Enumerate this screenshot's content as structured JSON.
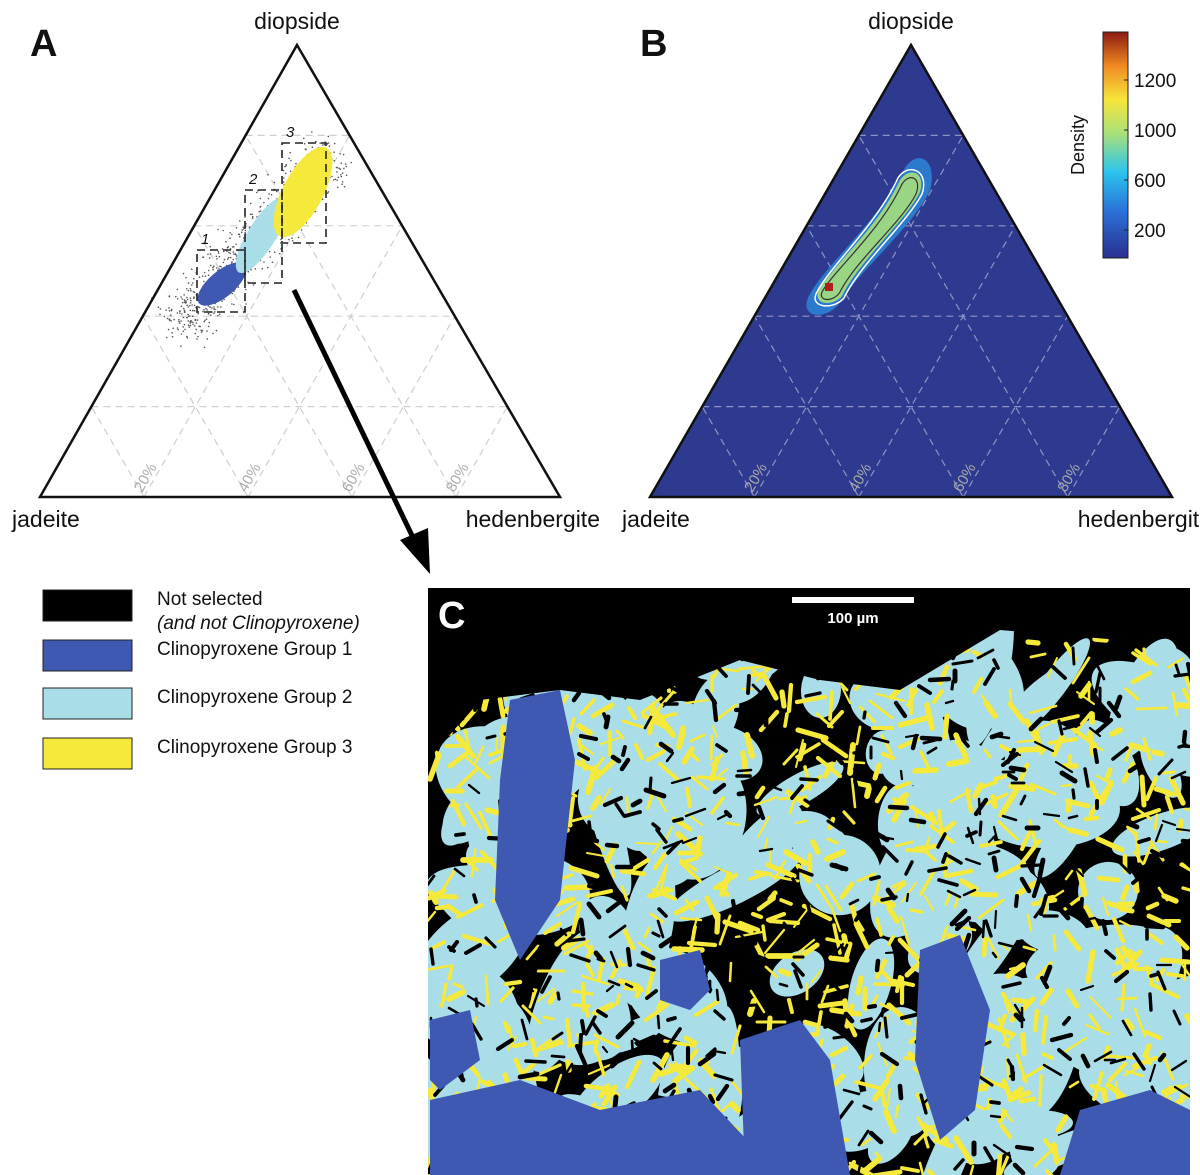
{
  "panels": {
    "A": {
      "label": "A",
      "vertices": {
        "top": "diopside",
        "left": "jadeite",
        "right": "hedenbergite"
      },
      "axis_ticks": [
        "20%",
        "40%",
        "60%",
        "80%"
      ],
      "boxes": [
        "1",
        "2",
        "3"
      ]
    },
    "B": {
      "label": "B",
      "vertices": {
        "top": "diopside",
        "left": "jadeite",
        "right": "hedenbergite"
      },
      "axis_ticks": [
        "20%",
        "40%",
        "60%",
        "80%"
      ],
      "colorbar": {
        "label": "Density",
        "ticks": [
          1200,
          1000,
          600,
          200
        ]
      }
    },
    "C": {
      "label": "C",
      "scale_bar": "100 µm"
    }
  },
  "legend": [
    {
      "label": "Not selected",
      "note": "(and not Clinopyroxene)",
      "color": "#000000"
    },
    {
      "label": "Clinopyroxene Group 1",
      "color": "#3f58b2"
    },
    {
      "label": "Clinopyroxene Group 2",
      "color": "#a9dde8"
    },
    {
      "label": "Clinopyroxene Group 3",
      "color": "#f5e93c"
    }
  ]
}
